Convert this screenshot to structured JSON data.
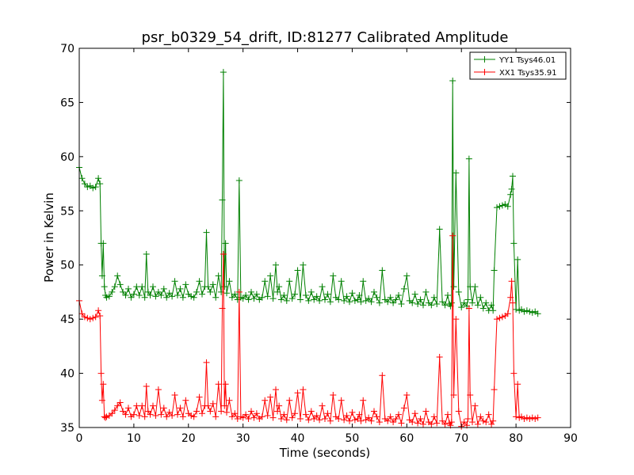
{
  "chart_data": {
    "type": "line",
    "title": "psr_b0329_54_drift, ID:81277 Calibrated Amplitude",
    "xlabel": "Time (seconds)",
    "ylabel": "Power in Kelvin",
    "xlim": [
      0,
      90
    ],
    "ylim": [
      35,
      70
    ],
    "xticks": [
      0,
      10,
      20,
      30,
      40,
      50,
      60,
      70,
      80,
      90
    ],
    "yticks": [
      35,
      40,
      45,
      50,
      55,
      60,
      65,
      70
    ],
    "grid": false,
    "legend_position": "top-right",
    "series": [
      {
        "name": "YY1 Tsys46.01",
        "color": "#008000",
        "x": [
          0,
          0.5,
          1,
          1.5,
          2,
          2.5,
          3,
          3.5,
          3.8,
          4,
          4.2,
          4.4,
          4.6,
          4.8,
          5,
          5.5,
          6,
          6.5,
          7,
          7.5,
          8,
          8.5,
          9,
          9.5,
          10,
          10.5,
          11,
          11.5,
          12,
          12.3,
          12.6,
          13,
          13.5,
          14,
          14.5,
          15,
          15.5,
          16,
          16.5,
          17,
          17.5,
          18,
          18.5,
          19,
          19.5,
          20,
          20.5,
          21,
          21.5,
          22,
          22.5,
          23,
          23.3,
          23.6,
          24,
          24.5,
          25,
          25.5,
          26,
          26.2,
          26.4,
          26.6,
          26.8,
          27,
          27.5,
          28,
          28.5,
          29,
          29.3,
          29.6,
          30,
          30.5,
          31,
          31.5,
          32,
          32.5,
          33,
          33.5,
          34,
          34.5,
          35,
          35.5,
          36,
          36.3,
          36.6,
          37,
          37.5,
          38,
          38.5,
          39,
          39.5,
          40,
          40.5,
          41,
          41.5,
          42,
          42.5,
          43,
          43.5,
          44,
          44.5,
          45,
          45.5,
          46,
          46.5,
          47,
          47.5,
          48,
          48.5,
          49,
          49.5,
          50,
          50.5,
          51,
          51.3,
          51.6,
          52,
          52.5,
          53,
          53.5,
          54,
          54.5,
          55,
          55.5,
          56,
          56.5,
          57,
          57.5,
          58,
          58.5,
          59,
          59.5,
          60,
          60.5,
          61,
          61.5,
          62,
          62.5,
          63,
          63.5,
          64,
          64.5,
          65,
          65.5,
          66,
          66.5,
          67,
          67.5,
          67.8,
          68,
          68.2,
          68.4,
          68.6,
          69,
          69.5,
          70,
          70.5,
          71,
          71.2,
          71.4,
          71.6,
          72,
          72.5,
          73,
          73.5,
          74,
          74.5,
          75,
          75.5,
          75.8,
          76,
          76.5,
          77,
          77.5,
          78,
          78.5,
          79,
          79.2,
          79.4,
          79.6,
          80,
          80.3,
          80.6,
          81,
          81.5,
          82,
          82.5,
          83,
          83.5,
          84
        ],
        "y": [
          59,
          58,
          57.5,
          57.2,
          57.3,
          57.1,
          57.2,
          58,
          57.5,
          52,
          49,
          52,
          48,
          47.2,
          47,
          47.1,
          47.5,
          48,
          49,
          48.2,
          47.5,
          47.2,
          47.8,
          47,
          47.3,
          48,
          47.2,
          48,
          47,
          51,
          47.5,
          47.2,
          48,
          47.1,
          47.5,
          47.2,
          47.8,
          47,
          47.4,
          47.1,
          48.5,
          47.2,
          47.8,
          47,
          48.2,
          47.3,
          47.1,
          47,
          47.5,
          48.5,
          47.3,
          48,
          53,
          48,
          47.5,
          48.2,
          47,
          49,
          47.5,
          56,
          67.8,
          48,
          52,
          47.4,
          48.5,
          47,
          47.3,
          46.8,
          57.8,
          47,
          46.9,
          47.2,
          46.8,
          47.5,
          46.9,
          47.3,
          46.8,
          47,
          48.5,
          47.1,
          49,
          46.9,
          50,
          47.5,
          48,
          46.8,
          47.2,
          46.7,
          48.5,
          46.9,
          47.3,
          49.5,
          46.8,
          50,
          47.2,
          46.7,
          47.5,
          46.8,
          47.1,
          46.7,
          48,
          46.8,
          47.3,
          46.6,
          49,
          47,
          46.8,
          48.5,
          46.7,
          47.1,
          46.6,
          47.4,
          46.7,
          46.8,
          47.2,
          46.6,
          48.5,
          46.7,
          46.9,
          46.6,
          47.5,
          47,
          46.5,
          49.5,
          46.8,
          46.6,
          47,
          46.5,
          46.8,
          47.2,
          46.4,
          47.8,
          49,
          46.7,
          46.5,
          47.3,
          46.4,
          46.8,
          46.3,
          47.5,
          46.5,
          46.3,
          47,
          46.4,
          53.3,
          46.6,
          46.3,
          47.2,
          46.4,
          46.2,
          46.5,
          67,
          48,
          58.5,
          47.5,
          46.1,
          46.5,
          46.2,
          46.8,
          59.8,
          48,
          46.5,
          48,
          46.3,
          47,
          46,
          46.5,
          45.8,
          46.3,
          45.8,
          49.5,
          55.3,
          55.4,
          55.5,
          55.6,
          55.4,
          56.5,
          57,
          58.2,
          52,
          45.9,
          50.5,
          45.8,
          45.9,
          45.7,
          45.8,
          45.7,
          45.6,
          45.7,
          45.5
        ]
      },
      {
        "name": "XX1 Tsys35.91",
        "color": "#ff0000",
        "x": [
          0,
          0.5,
          1,
          1.5,
          2,
          2.5,
          3,
          3.5,
          3.8,
          4,
          4.2,
          4.4,
          4.6,
          4.8,
          5,
          5.5,
          6,
          6.5,
          7,
          7.5,
          8,
          8.5,
          9,
          9.5,
          10,
          10.5,
          11,
          11.5,
          12,
          12.3,
          12.6,
          13,
          13.5,
          14,
          14.5,
          15,
          15.5,
          16,
          16.5,
          17,
          17.5,
          18,
          18.5,
          19,
          19.5,
          20,
          20.5,
          21,
          21.5,
          22,
          22.5,
          23,
          23.3,
          23.6,
          24,
          24.5,
          25,
          25.5,
          26,
          26.2,
          26.4,
          26.6,
          26.8,
          27,
          27.5,
          28,
          28.5,
          29,
          29.3,
          29.6,
          30,
          30.5,
          31,
          31.5,
          32,
          32.5,
          33,
          33.5,
          34,
          34.5,
          35,
          35.5,
          36,
          36.3,
          36.6,
          37,
          37.5,
          38,
          38.5,
          39,
          39.5,
          40,
          40.5,
          41,
          41.5,
          42,
          42.5,
          43,
          43.5,
          44,
          44.5,
          45,
          45.5,
          46,
          46.5,
          47,
          47.5,
          48,
          48.5,
          49,
          49.5,
          50,
          50.5,
          51,
          51.3,
          51.6,
          52,
          52.5,
          53,
          53.5,
          54,
          54.5,
          55,
          55.5,
          56,
          56.5,
          57,
          57.5,
          58,
          58.5,
          59,
          59.5,
          60,
          60.5,
          61,
          61.5,
          62,
          62.5,
          63,
          63.5,
          64,
          64.5,
          65,
          65.5,
          66,
          66.5,
          67,
          67.5,
          67.8,
          68,
          68.2,
          68.4,
          68.6,
          69,
          69.5,
          70,
          70.5,
          71,
          71.2,
          71.4,
          71.6,
          72,
          72.5,
          73,
          73.5,
          74,
          74.5,
          75,
          75.5,
          75.8,
          76,
          76.5,
          77,
          77.5,
          78,
          78.5,
          79,
          79.2,
          79.4,
          79.6,
          80,
          80.3,
          80.6,
          81,
          81.5,
          82,
          82.5,
          83,
          83.5,
          84
        ],
        "y": [
          46.7,
          45.5,
          45.2,
          45.1,
          45,
          45.1,
          45.2,
          45.8,
          45.3,
          40,
          37.5,
          39,
          36,
          35.9,
          36,
          36.1,
          36.3,
          36.6,
          37,
          37.3,
          36.5,
          36.2,
          36.8,
          36,
          36.2,
          37,
          36.1,
          37,
          36,
          38.8,
          36.5,
          36.2,
          37,
          36.1,
          38.5,
          36.2,
          36.8,
          36,
          36.4,
          36.1,
          38,
          36.2,
          36.8,
          36,
          37.5,
          36.3,
          36.1,
          36,
          36.5,
          37.8,
          36.3,
          37,
          41,
          37,
          36.5,
          37.2,
          36,
          39,
          36.5,
          46,
          51,
          37,
          39,
          36.4,
          37.5,
          36,
          36.3,
          35.8,
          47.5,
          36,
          35.9,
          36.2,
          35.8,
          36.5,
          35.9,
          36.3,
          35.8,
          36,
          37.5,
          36.1,
          37.8,
          35.9,
          38.5,
          36.5,
          37,
          35.8,
          36.2,
          35.7,
          37.5,
          35.9,
          36.3,
          38.2,
          35.8,
          38.5,
          36.2,
          35.7,
          36.5,
          35.8,
          36.1,
          35.7,
          37,
          35.8,
          36.3,
          35.6,
          38,
          36,
          35.8,
          37.5,
          35.7,
          36.1,
          35.6,
          36.4,
          35.7,
          35.8,
          36.2,
          35.6,
          37.5,
          35.7,
          35.9,
          35.6,
          36.5,
          36,
          35.5,
          39.8,
          35.8,
          35.6,
          36,
          35.5,
          35.8,
          36.2,
          35.4,
          36.8,
          38,
          35.7,
          35.5,
          36.3,
          35.4,
          35.8,
          35.3,
          36.5,
          35.5,
          35.3,
          36,
          35.4,
          41.5,
          35.6,
          35.3,
          36.2,
          35.4,
          35.2,
          35.5,
          52.7,
          38,
          45,
          36.5,
          35.1,
          35.5,
          35.2,
          35.8,
          46,
          38,
          35.5,
          37,
          35.3,
          36,
          35.6,
          35.5,
          36.2,
          35.3,
          35.6,
          38.5,
          45,
          45.1,
          45.2,
          45.3,
          45.5,
          47,
          48.5,
          46.5,
          40,
          36,
          39,
          35.9,
          36,
          35.8,
          35.9,
          35.8,
          35.9,
          35.8,
          35.9
        ]
      }
    ]
  }
}
